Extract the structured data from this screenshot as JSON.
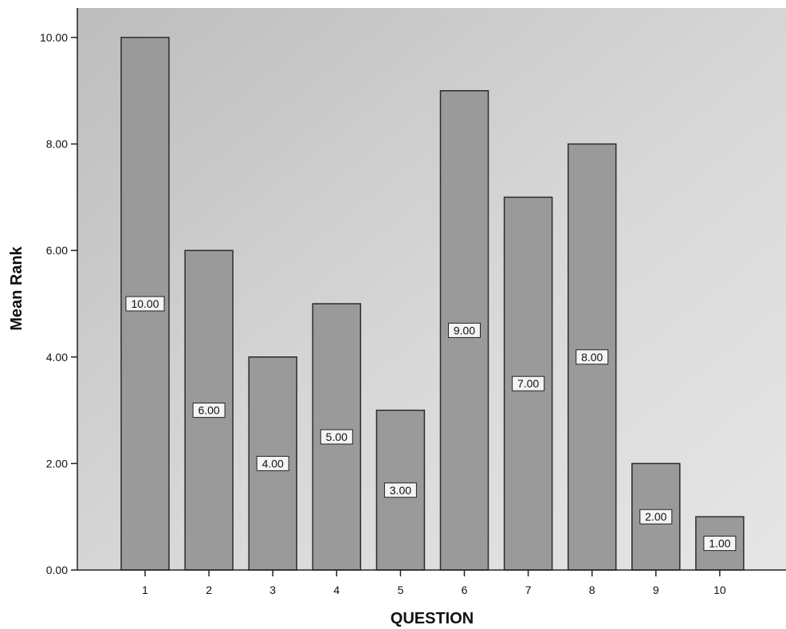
{
  "chart_data": {
    "type": "bar",
    "title": "",
    "xlabel": "QUESTION",
    "ylabel": "Mean Rank",
    "categories": [
      "1",
      "2",
      "3",
      "4",
      "5",
      "6",
      "7",
      "8",
      "9",
      "10"
    ],
    "values": [
      10,
      6,
      4,
      5,
      3,
      9,
      7,
      8,
      2,
      1
    ],
    "data_labels": [
      "10.00",
      "6.00",
      "4.00",
      "5.00",
      "3.00",
      "9.00",
      "7.00",
      "8.00",
      "2.00",
      "1.00"
    ],
    "ylim": [
      0,
      10
    ],
    "yticks": [
      0,
      2,
      4,
      6,
      8,
      10
    ],
    "ytick_labels": [
      "0.00",
      "2.00",
      "4.00",
      "6.00",
      "8.00",
      "10.00"
    ],
    "grid": false,
    "legend": "none",
    "colors": {
      "bar_fill": "#9a9a9a",
      "bar_stroke": "#2b2b2b",
      "plot_background": "#d4d4d4",
      "axis": "#222222"
    }
  }
}
